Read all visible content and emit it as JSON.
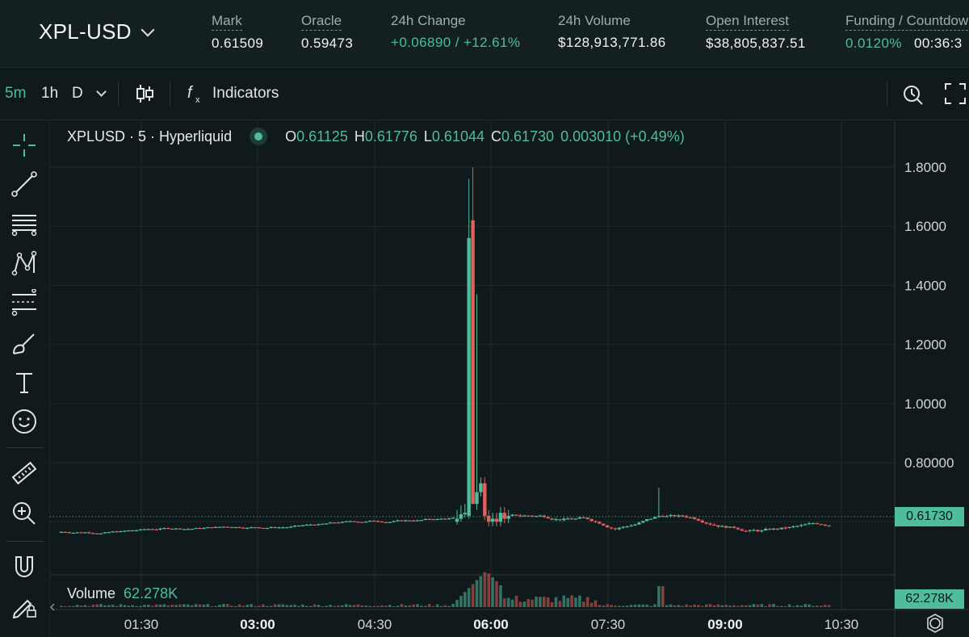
{
  "header": {
    "pair": "XPL-USD",
    "stats": [
      {
        "label": "Mark",
        "value": "0.61509"
      },
      {
        "label": "Oracle",
        "value": "0.59473"
      },
      {
        "label": "24h Change",
        "value": "+0.06890 / +12.61%"
      },
      {
        "label": "24h Volume",
        "value": "$128,913,771.86"
      },
      {
        "label": "Open Interest",
        "value": "$38,805,837.51"
      },
      {
        "label": "Funding / Countdown",
        "value_rate": "0.0120%",
        "value_countdown": "00:36:3"
      }
    ]
  },
  "toolbar": {
    "intervals": [
      "5m",
      "1h",
      "D"
    ],
    "active_interval": "5m",
    "indicators_label": "Indicators"
  },
  "legend": {
    "symbol": "XPLUSD · 5 · Hyperliquid",
    "o_label": "O",
    "o": "0.61125",
    "h_label": "H",
    "h": "0.61776",
    "l_label": "L",
    "l": "0.61044",
    "c_label": "C",
    "c": "0.61730",
    "change": "0.003010 (+0.49%)"
  },
  "volume": {
    "label": "Volume",
    "value": "62.278K"
  },
  "price_tag": "0.61730",
  "volume_tag": "62.278K",
  "colors": {
    "up": "#4fbd9c",
    "down": "#e0605a",
    "background": "#101a1d"
  },
  "chart_data": {
    "type": "candlestick",
    "y_ticks": [
      "1.8000",
      "1.6000",
      "1.4000",
      "1.2000",
      "1.0000",
      "0.80000"
    ],
    "x_ticks": [
      "01:30",
      "03:00",
      "04:30",
      "06:00",
      "07:30",
      "09:00",
      "10:30"
    ],
    "ylim": [
      0.48,
      1.88
    ],
    "last_price": 0.6173,
    "key_candles": [
      {
        "time": "05:45",
        "open": 0.62,
        "high": 1.76,
        "low": 0.61,
        "close": 1.56,
        "dir": "up"
      },
      {
        "time": "05:50",
        "open": 1.62,
        "high": 1.8,
        "low": 0.66,
        "close": 0.66,
        "dir": "down"
      },
      {
        "time": "05:55",
        "open": 0.66,
        "high": 1.37,
        "low": 0.64,
        "close": 0.7,
        "dir": "up"
      }
    ],
    "grid": true
  }
}
